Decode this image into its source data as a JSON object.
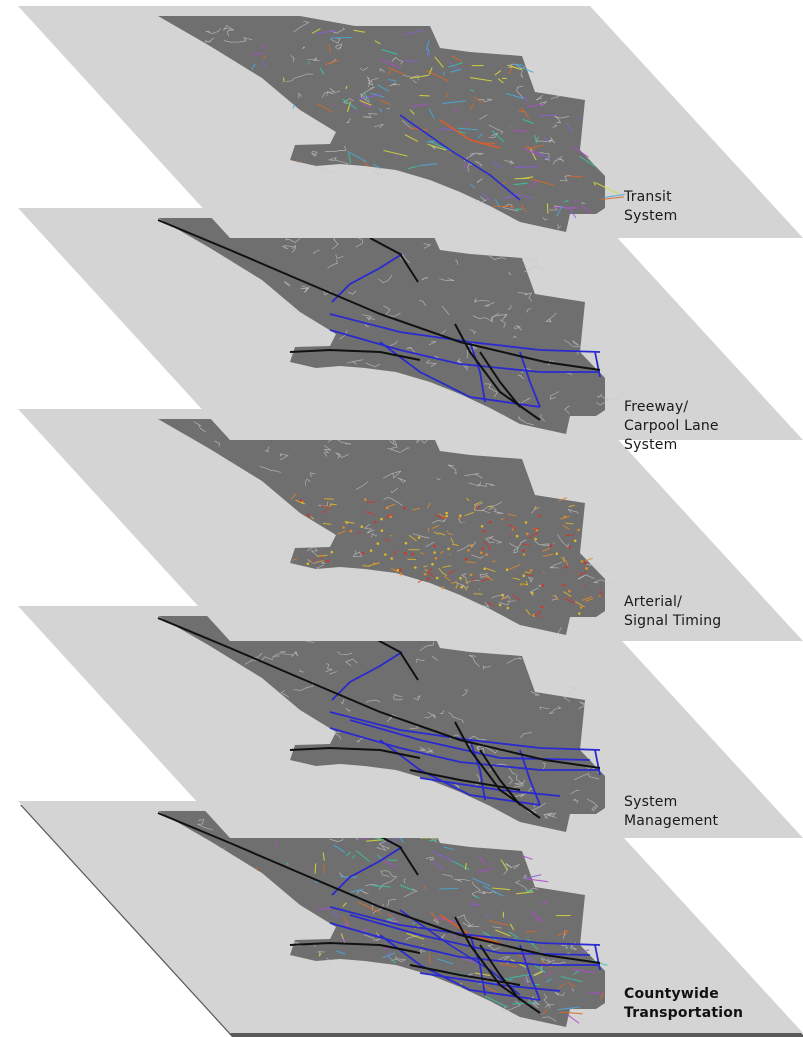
{
  "layers": [
    {
      "key": "transit",
      "label_lines": [
        "Transit",
        "System"
      ],
      "bold": false,
      "networks": [
        "transit"
      ]
    },
    {
      "key": "freeway",
      "label_lines": [
        "Freeway/",
        "Carpool Lane",
        "System"
      ],
      "bold": false,
      "networks": [
        "freeway"
      ]
    },
    {
      "key": "arterial",
      "label_lines": [
        "Arterial/",
        "Signal Timing"
      ],
      "bold": false,
      "networks": [
        "arterial"
      ]
    },
    {
      "key": "management",
      "label_lines": [
        "System",
        "Management"
      ],
      "bold": false,
      "networks": [
        "freeway-dense"
      ]
    },
    {
      "key": "countywide",
      "label_lines": [
        "Countywide",
        "Transportation"
      ],
      "bold": true,
      "networks": [
        "transit",
        "freeway-dense"
      ]
    }
  ],
  "colors": {
    "plane": "#d4d4d4",
    "plane_edge": "#5a5a5a",
    "county": "#6f6f6f",
    "roads_minor": "#c9c9c9",
    "freeway_black": "#111111",
    "carpool_blue": "#2a2ad0",
    "transit": [
      "#39c3a6",
      "#8a5ed6",
      "#d8d83a",
      "#d46a2a",
      "#4aa8d8",
      "#b04ad0"
    ],
    "signals": [
      "#d8302a",
      "#e0b82a",
      "#e08a2a"
    ]
  }
}
